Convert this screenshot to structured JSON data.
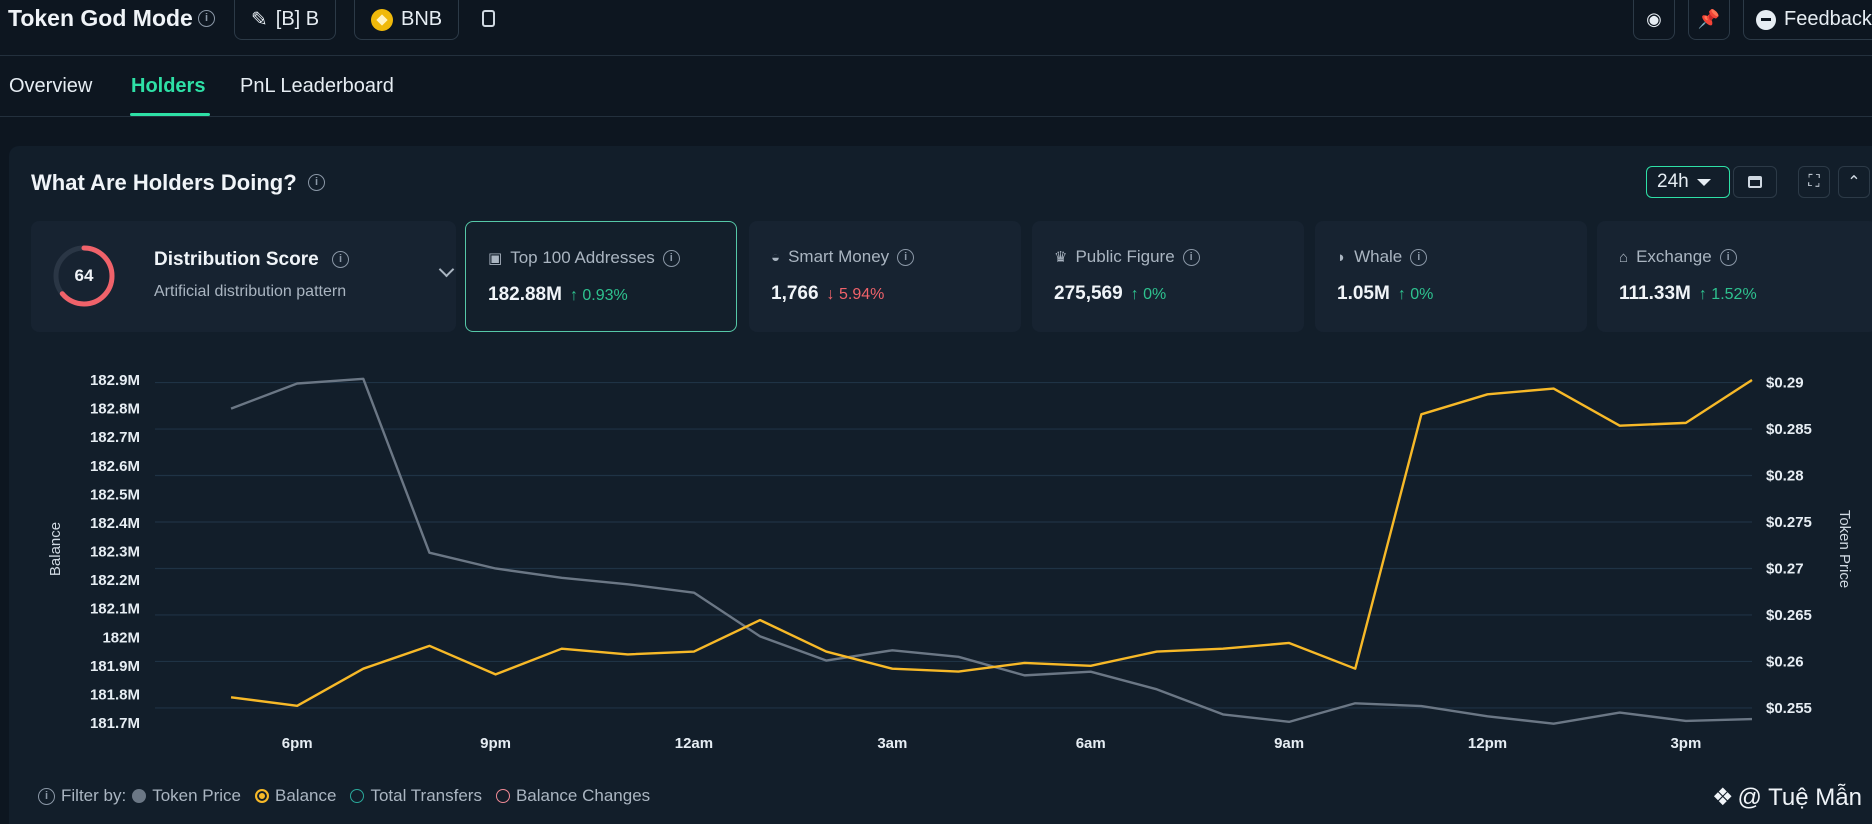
{
  "header": {
    "app_title": "Token God Mode",
    "token_chip": "[B] B",
    "chain_chip": "BNB",
    "feedback_label": "Feedback"
  },
  "tabs": [
    {
      "label": "Overview"
    },
    {
      "label": "Holders"
    },
    {
      "label": "PnL Leaderboard"
    }
  ],
  "panel": {
    "title": "What Are Holders Doing?",
    "range": "24h"
  },
  "distribution": {
    "score": "64",
    "score_fraction": 0.64,
    "title": "Distribution Score",
    "subtitle": "Artificial distribution pattern"
  },
  "cards": [
    {
      "label": "Top 100 Addresses",
      "value": "182.88M",
      "change": "0.93%",
      "dir": "up",
      "icon": "wallet-icon"
    },
    {
      "label": "Smart Money",
      "value": "1,766",
      "change": "5.94%",
      "dir": "down",
      "icon": "brain-icon"
    },
    {
      "label": "Public Figure",
      "value": "275,569",
      "change": "0%",
      "dir": "up",
      "icon": "person-icon"
    },
    {
      "label": "Whale",
      "value": "1.05M",
      "change": "0%",
      "dir": "up",
      "icon": "whale-icon"
    },
    {
      "label": "Exchange",
      "value": "111.33M",
      "change": "1.52%",
      "dir": "up",
      "icon": "bank-icon"
    }
  ],
  "colors": {
    "accent": "#2ee0a6",
    "price_line": "#6b7785",
    "balance_line": "#f7b928",
    "up": "#2ec28f",
    "down": "#f0626a",
    "score_ring": "#f0626a"
  },
  "chart_data": {
    "type": "line",
    "x_ticks": [
      "6pm",
      "9pm",
      "12am",
      "3am",
      "6am",
      "9am",
      "12pm",
      "3pm"
    ],
    "ylabel": "Balance",
    "ylabel_right": "Token Price",
    "y_ticks": [
      "182.9M",
      "182.8M",
      "182.7M",
      "182.6M",
      "182.5M",
      "182.4M",
      "182.3M",
      "182.2M",
      "182.1M",
      "182M",
      "181.9M",
      "181.8M",
      "181.7M"
    ],
    "y_tick_values": [
      182.9,
      182.8,
      182.7,
      182.6,
      182.5,
      182.4,
      182.3,
      182.2,
      182.1,
      182.0,
      181.9,
      181.8,
      181.7
    ],
    "y2_ticks": [
      "$0.29",
      "$0.285",
      "$0.28",
      "$0.275",
      "$0.27",
      "$0.265",
      "$0.26",
      "$0.255"
    ],
    "y2_tick_values": [
      0.29,
      0.285,
      0.28,
      0.275,
      0.27,
      0.265,
      0.26,
      0.255
    ],
    "ylim": [
      181.7,
      182.9
    ],
    "y2lim": [
      0.2537,
      0.2906
    ],
    "x_hours": [
      0,
      1,
      2,
      3,
      4,
      5,
      6,
      7,
      8,
      9,
      10,
      11,
      12,
      13,
      14,
      15,
      16,
      17,
      18,
      19,
      20,
      21,
      22,
      23
    ],
    "series": [
      {
        "name": "Token Price",
        "axis": "right",
        "values": [
          0.2872,
          0.2899,
          0.2904,
          0.2717,
          0.27,
          0.269,
          0.2683,
          0.2674,
          0.2627,
          0.2601,
          0.2612,
          0.2605,
          0.2585,
          0.2589,
          0.257,
          0.2543,
          0.2535,
          0.2555,
          0.2552,
          0.2541,
          0.2533,
          0.2545,
          0.2536,
          0.2538
        ]
      },
      {
        "name": "Balance",
        "axis": "left",
        "values": [
          181.79,
          181.76,
          181.89,
          181.97,
          181.87,
          181.96,
          181.94,
          181.95,
          182.06,
          181.95,
          181.89,
          181.88,
          181.91,
          181.9,
          181.95,
          181.96,
          181.98,
          181.89,
          182.78,
          182.85,
          182.87,
          182.74,
          182.75,
          182.9
        ]
      }
    ]
  },
  "filters": {
    "label": "Filter by:",
    "items": [
      {
        "label": "Token Price",
        "color": "#6b7785",
        "filled": true
      },
      {
        "label": "Balance",
        "color": "#f7b928",
        "filled": false,
        "ring": true
      },
      {
        "label": "Total Transfers",
        "color": "#2aa89a",
        "filled": false
      },
      {
        "label": "Balance Changes",
        "color": "#f08a95",
        "filled": false
      }
    ]
  },
  "watermark": "@ Tuệ Mẫn"
}
